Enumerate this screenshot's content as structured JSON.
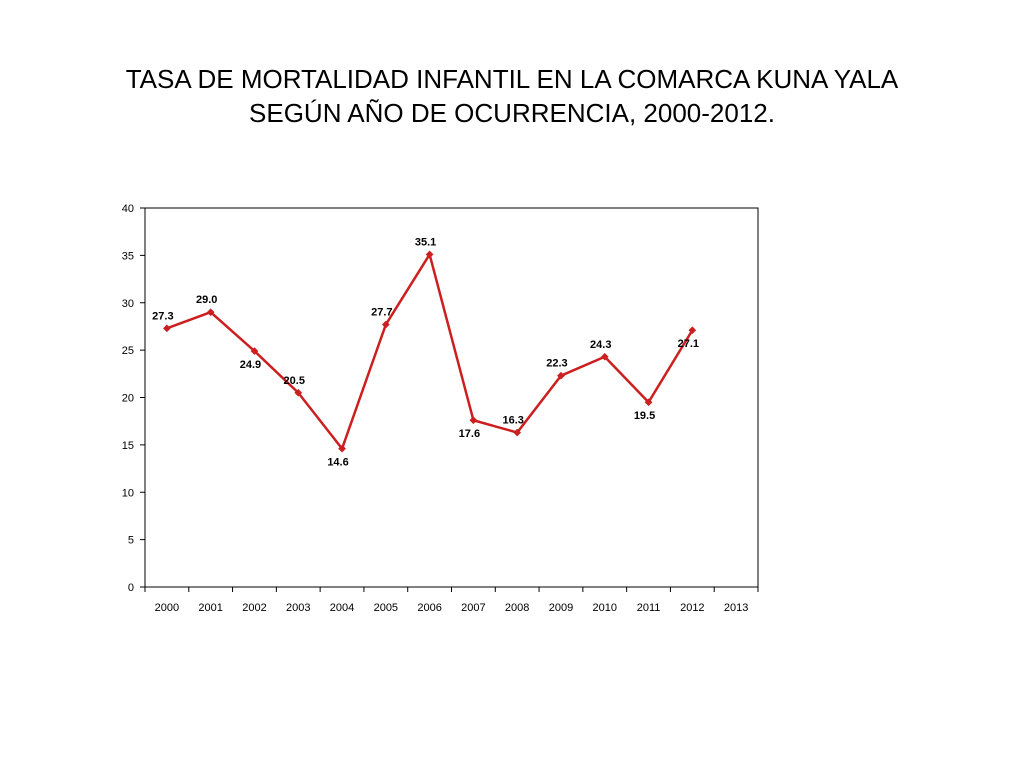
{
  "slide": {
    "title_line1": "TASA DE MORTALIDAD INFANTIL EN LA COMARCA KUNA YALA",
    "title_line2": "SEGÚN AÑO DE OCURRENCIA, 2000-2012."
  },
  "chart_data": {
    "type": "line",
    "title": "",
    "xlabel": "",
    "ylabel": "",
    "categories": [
      "2000",
      "2001",
      "2002",
      "2003",
      "2004",
      "2005",
      "2006",
      "2007",
      "2008",
      "2009",
      "2010",
      "2011",
      "2012",
      "2013"
    ],
    "series": [
      {
        "color": "#cc1f1f",
        "values": [
          27.3,
          29.0,
          24.9,
          20.5,
          14.6,
          27.7,
          35.1,
          17.6,
          16.3,
          22.3,
          24.3,
          19.5,
          27.1,
          null
        ],
        "labels": [
          "27.3",
          "29.0",
          "24.9",
          "20.5",
          "14.6",
          "27.7",
          "35.1",
          "17.6",
          "16.3",
          "22.3",
          "24.3",
          "19.5",
          "27.1",
          ""
        ],
        "label_positions": [
          "above",
          "above",
          "below",
          "above",
          "below",
          "above",
          "above",
          "below",
          "above",
          "above",
          "above",
          "below",
          "below",
          ""
        ]
      }
    ],
    "ylim": [
      0,
      40
    ],
    "yticks": [
      "0",
      "5",
      "10",
      "15",
      "20",
      "25",
      "30",
      "35",
      "40"
    ],
    "ytick_values": [
      0,
      5,
      10,
      15,
      20,
      25,
      30,
      35,
      40
    ],
    "grid": false,
    "legend": "none"
  }
}
